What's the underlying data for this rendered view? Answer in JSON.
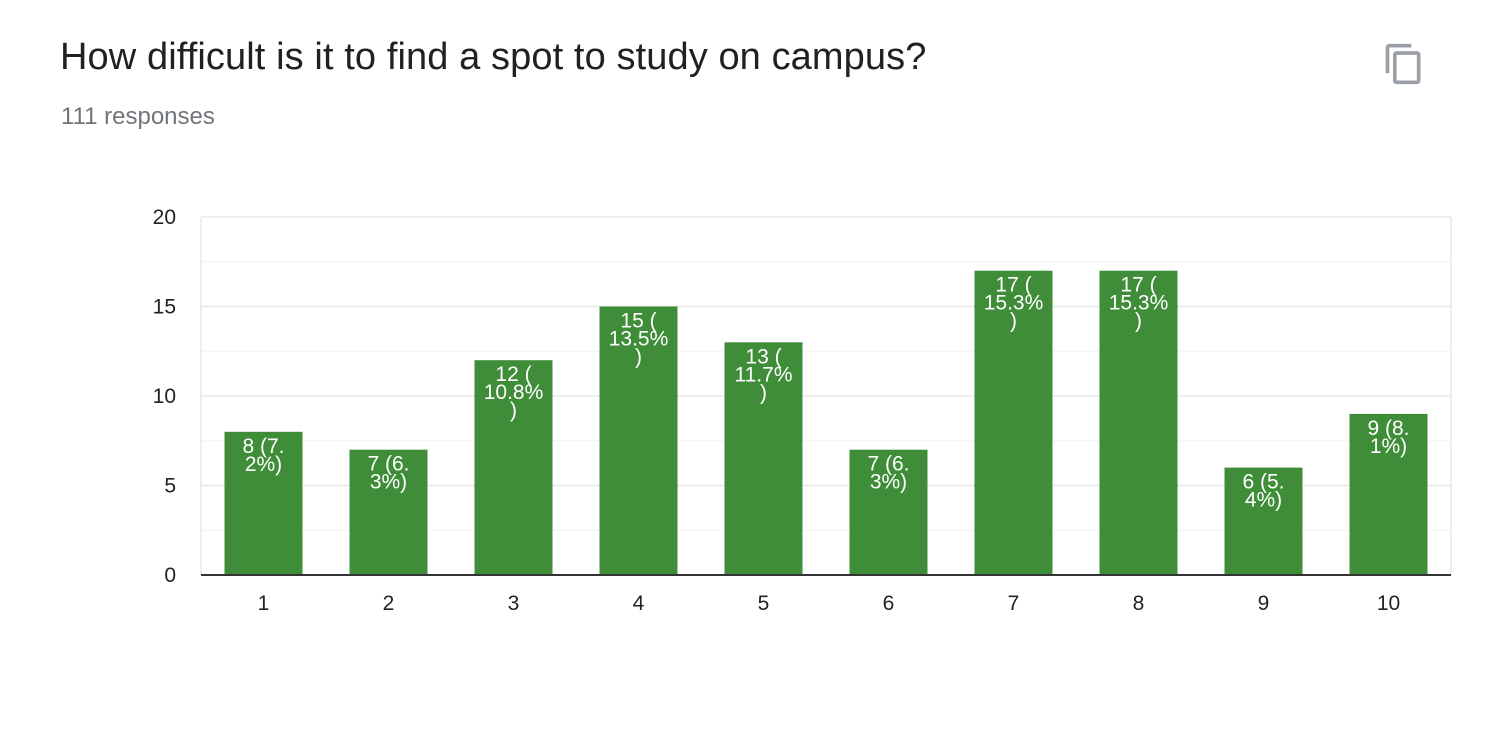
{
  "question": {
    "title": "How difficult is it to find a spot to study on campus?",
    "responses_text": "111 responses"
  },
  "actions": {
    "copy_icon": "copy-icon"
  },
  "colors": {
    "bar": "#3f8d38",
    "gridline": "#e8e8e8",
    "minor_gridline": "#f3f3f3",
    "baseline": "#333333",
    "tick_text": "#222222",
    "label_text": "#ffffff",
    "icon": "#9aa0a6"
  },
  "chart_data": {
    "type": "bar",
    "categories": [
      "1",
      "2",
      "3",
      "4",
      "5",
      "6",
      "7",
      "8",
      "9",
      "10"
    ],
    "values": [
      8,
      7,
      12,
      15,
      13,
      7,
      17,
      17,
      6,
      9
    ],
    "data_labels": [
      [
        "8 (7.",
        "2%)"
      ],
      [
        "7 (6.",
        "3%)"
      ],
      [
        "12 (",
        "10.8%",
        ")"
      ],
      [
        "15 (",
        "13.5%",
        ")"
      ],
      [
        "13 (",
        "11.7%",
        ")"
      ],
      [
        "7 (6.",
        "3%)"
      ],
      [
        "17 (",
        "15.3%",
        ")"
      ],
      [
        "17 (",
        "15.3%",
        ")"
      ],
      [
        "6 (5.",
        "4%)"
      ],
      [
        "9 (8.",
        "1%)"
      ]
    ],
    "y_ticks": [
      "0",
      "5",
      "10",
      "15",
      "20"
    ],
    "ylim": [
      0,
      20
    ],
    "major_step": 5,
    "minor_step": 2.5,
    "grid": true,
    "legend": "none"
  }
}
